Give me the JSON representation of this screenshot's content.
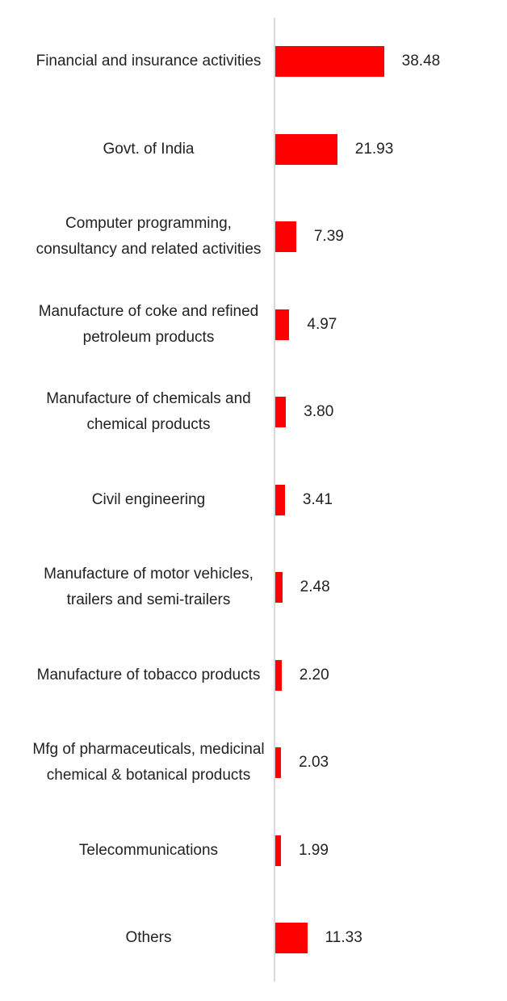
{
  "chart_data": {
    "type": "bar",
    "orientation": "horizontal",
    "color": "#ff0000",
    "categories": [
      "Financial and insurance activities",
      "Govt. of India",
      "Computer programming, consultancy and related activities",
      "Manufacture of coke and refined petroleum products",
      "Manufacture of chemicals and chemical products",
      "Civil engineering",
      "Manufacture of motor vehicles, trailers and semi-trailers",
      "Manufacture of tobacco products",
      "Mfg of pharmaceuticals, medicinal chemical & botanical products",
      "Telecommunications",
      "Others"
    ],
    "values": [
      38.48,
      21.93,
      7.39,
      4.97,
      3.8,
      3.41,
      2.48,
      2.2,
      2.03,
      1.99,
      11.33
    ],
    "value_labels": [
      "38.48",
      "21.93",
      "7.39",
      "4.97",
      "3.80",
      "3.41",
      "2.48",
      "2.20",
      "2.03",
      "1.99",
      "11.33"
    ]
  }
}
